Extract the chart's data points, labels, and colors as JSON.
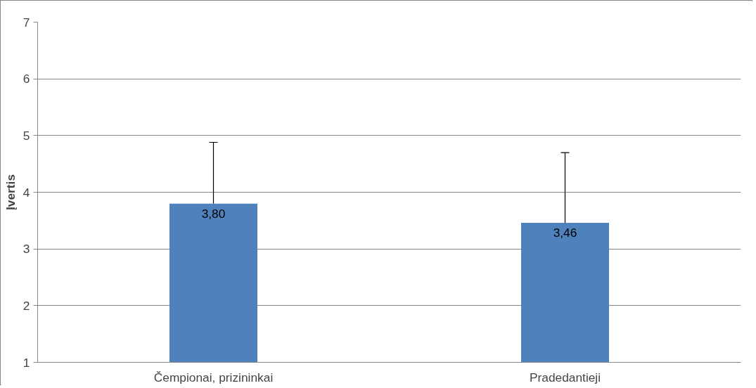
{
  "chart_data": {
    "type": "bar",
    "ylabel": "Įvertis",
    "categories": [
      "Čempionai, prizininkai",
      "Pradedantieji"
    ],
    "values": [
      3.8,
      3.46
    ],
    "color": "#4f81bd",
    "errors": [
      [
        3.8,
        4.88
      ],
      [
        3.46,
        4.7
      ]
    ],
    "value_labels": [
      "3,80",
      "3,46"
    ],
    "ylim": [
      1,
      7
    ],
    "yticks": [
      1,
      2,
      3,
      4,
      5,
      6,
      7
    ],
    "grid": "y"
  }
}
